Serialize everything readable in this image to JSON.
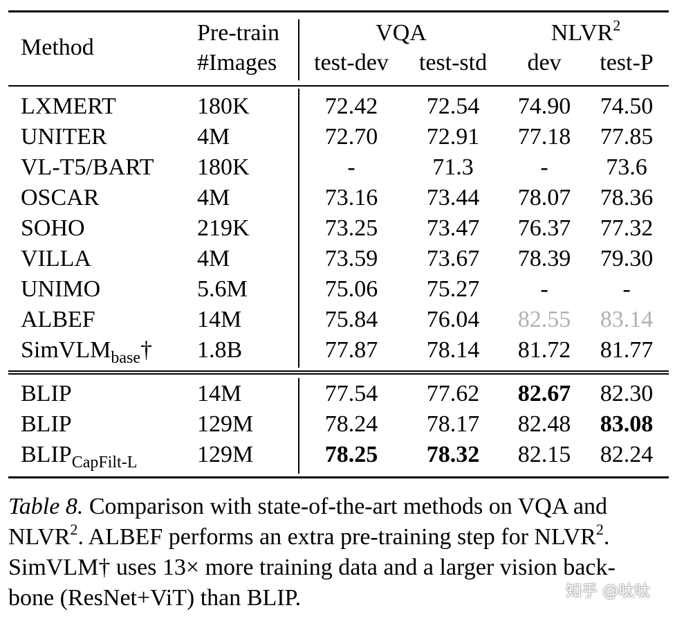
{
  "table": {
    "headers": {
      "method": "Method",
      "pretrain_line1": "Pre-train",
      "pretrain_line2": "#Images",
      "vqa": "VQA",
      "nlvr": "NLVR",
      "nlvr_sup": "2",
      "test_dev": "test-dev",
      "test_std": "test-std",
      "dev": "dev",
      "test_p": "test-P"
    },
    "rows_top": [
      {
        "method": "LXMERT",
        "method_sub": "",
        "method_suffix": "",
        "images": "180K",
        "test_dev": "72.42",
        "test_std": "72.54",
        "dev": "74.90",
        "test_p": "74.50"
      },
      {
        "method": "UNITER",
        "method_sub": "",
        "method_suffix": "",
        "images": "4M",
        "test_dev": "72.70",
        "test_std": "72.91",
        "dev": "77.18",
        "test_p": "77.85"
      },
      {
        "method": "VL-T5/BART",
        "method_sub": "",
        "method_suffix": "",
        "images": "180K",
        "test_dev": "-",
        "test_std": "71.3",
        "dev": "-",
        "test_p": "73.6"
      },
      {
        "method": "OSCAR",
        "method_sub": "",
        "method_suffix": "",
        "images": "4M",
        "test_dev": "73.16",
        "test_std": "73.44",
        "dev": "78.07",
        "test_p": "78.36"
      },
      {
        "method": "SOHO",
        "method_sub": "",
        "method_suffix": "",
        "images": "219K",
        "test_dev": "73.25",
        "test_std": "73.47",
        "dev": "76.37",
        "test_p": "77.32"
      },
      {
        "method": "VILLA",
        "method_sub": "",
        "method_suffix": "",
        "images": "4M",
        "test_dev": "73.59",
        "test_std": "73.67",
        "dev": "78.39",
        "test_p": "79.30"
      },
      {
        "method": "UNIMO",
        "method_sub": "",
        "method_suffix": "",
        "images": "5.6M",
        "test_dev": "75.06",
        "test_std": "75.27",
        "dev": "-",
        "test_p": "-"
      },
      {
        "method": "ALBEF",
        "method_sub": "",
        "method_suffix": "",
        "images": "14M",
        "test_dev": "75.84",
        "test_std": "76.04",
        "dev": "82.55",
        "test_p": "83.14",
        "gray": [
          "dev",
          "test_p"
        ]
      },
      {
        "method": "SimVLM",
        "method_sub": "base",
        "method_suffix": "†",
        "images": "1.8B",
        "test_dev": "77.87",
        "test_std": "78.14",
        "dev": "81.72",
        "test_p": "81.77"
      }
    ],
    "rows_bottom": [
      {
        "method": "BLIP",
        "method_sub": "",
        "images": "14M",
        "test_dev": "77.54",
        "test_std": "77.62",
        "dev": "82.67",
        "test_p": "82.30",
        "bold": [
          "dev"
        ]
      },
      {
        "method": "BLIP",
        "method_sub": "",
        "images": "129M",
        "test_dev": "78.24",
        "test_std": "78.17",
        "dev": "82.48",
        "test_p": "83.08",
        "bold": [
          "test_p"
        ]
      },
      {
        "method": "BLIP",
        "method_sub": "CapFilt-L",
        "images": "129M",
        "test_dev": "78.25",
        "test_std": "78.32",
        "dev": "82.15",
        "test_p": "82.24",
        "bold": [
          "test_dev",
          "test_std"
        ]
      }
    ]
  },
  "caption": {
    "label": "Table 8.",
    "line1_text": " Comparison with state-of-the-art methods on VQA and",
    "line2_a": "NLVR",
    "line2_sup1": "2",
    "line2_b": ". ALBEF performs an extra pre-training step for NLVR",
    "line2_sup2": "2",
    "line2_c": ".",
    "line3": "SimVLM† uses 13× more training data and a larger vision back-",
    "line4": "bone (ResNet+ViT) than BLIP."
  },
  "watermark": "知乎 @呔呔"
}
